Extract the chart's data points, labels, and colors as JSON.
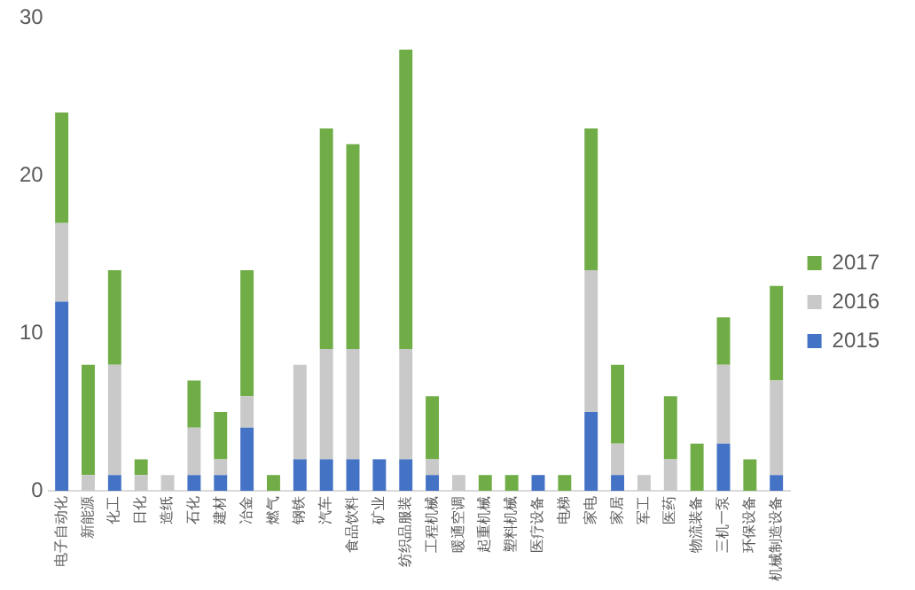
{
  "chart_data": {
    "type": "bar",
    "stacked": true,
    "categories": [
      "电子自动化",
      "新能源",
      "化工",
      "日化",
      "造纸",
      "石化",
      "建材",
      "冶金",
      "燃气",
      "钢铁",
      "汽车",
      "食品饮料",
      "矿业",
      "纺织品服装",
      "工程机械",
      "暖通空调",
      "起重机械",
      "塑料机械",
      "医疗设备",
      "电梯",
      "家电",
      "家居",
      "军工",
      "医药",
      "物流装备",
      "三机一泵",
      "环保设备",
      "机械制造设备"
    ],
    "series": [
      {
        "name": "2015",
        "color": "#4472c4",
        "values": [
          12,
          0,
          1,
          0,
          0,
          1,
          1,
          4,
          0,
          2,
          2,
          2,
          2,
          2,
          1,
          0,
          0,
          0,
          1,
          0,
          5,
          1,
          0,
          0,
          0,
          3,
          0,
          1
        ]
      },
      {
        "name": "2016",
        "color": "#c9c9c9",
        "values": [
          5,
          1,
          7,
          1,
          1,
          3,
          1,
          2,
          0,
          6,
          7,
          7,
          0,
          7,
          1,
          1,
          0,
          0,
          0,
          0,
          9,
          2,
          1,
          2,
          0,
          5,
          0,
          6
        ]
      },
      {
        "name": "2017",
        "color": "#70ad47",
        "values": [
          7,
          7,
          6,
          1,
          0,
          3,
          3,
          8,
          1,
          0,
          14,
          13,
          0,
          19,
          4,
          0,
          1,
          1,
          0,
          1,
          9,
          5,
          0,
          4,
          3,
          3,
          2,
          6
        ]
      }
    ],
    "ylim": [
      0,
      30
    ],
    "yticks": [
      0,
      10,
      20,
      30
    ],
    "grid": false,
    "legend": "right"
  }
}
